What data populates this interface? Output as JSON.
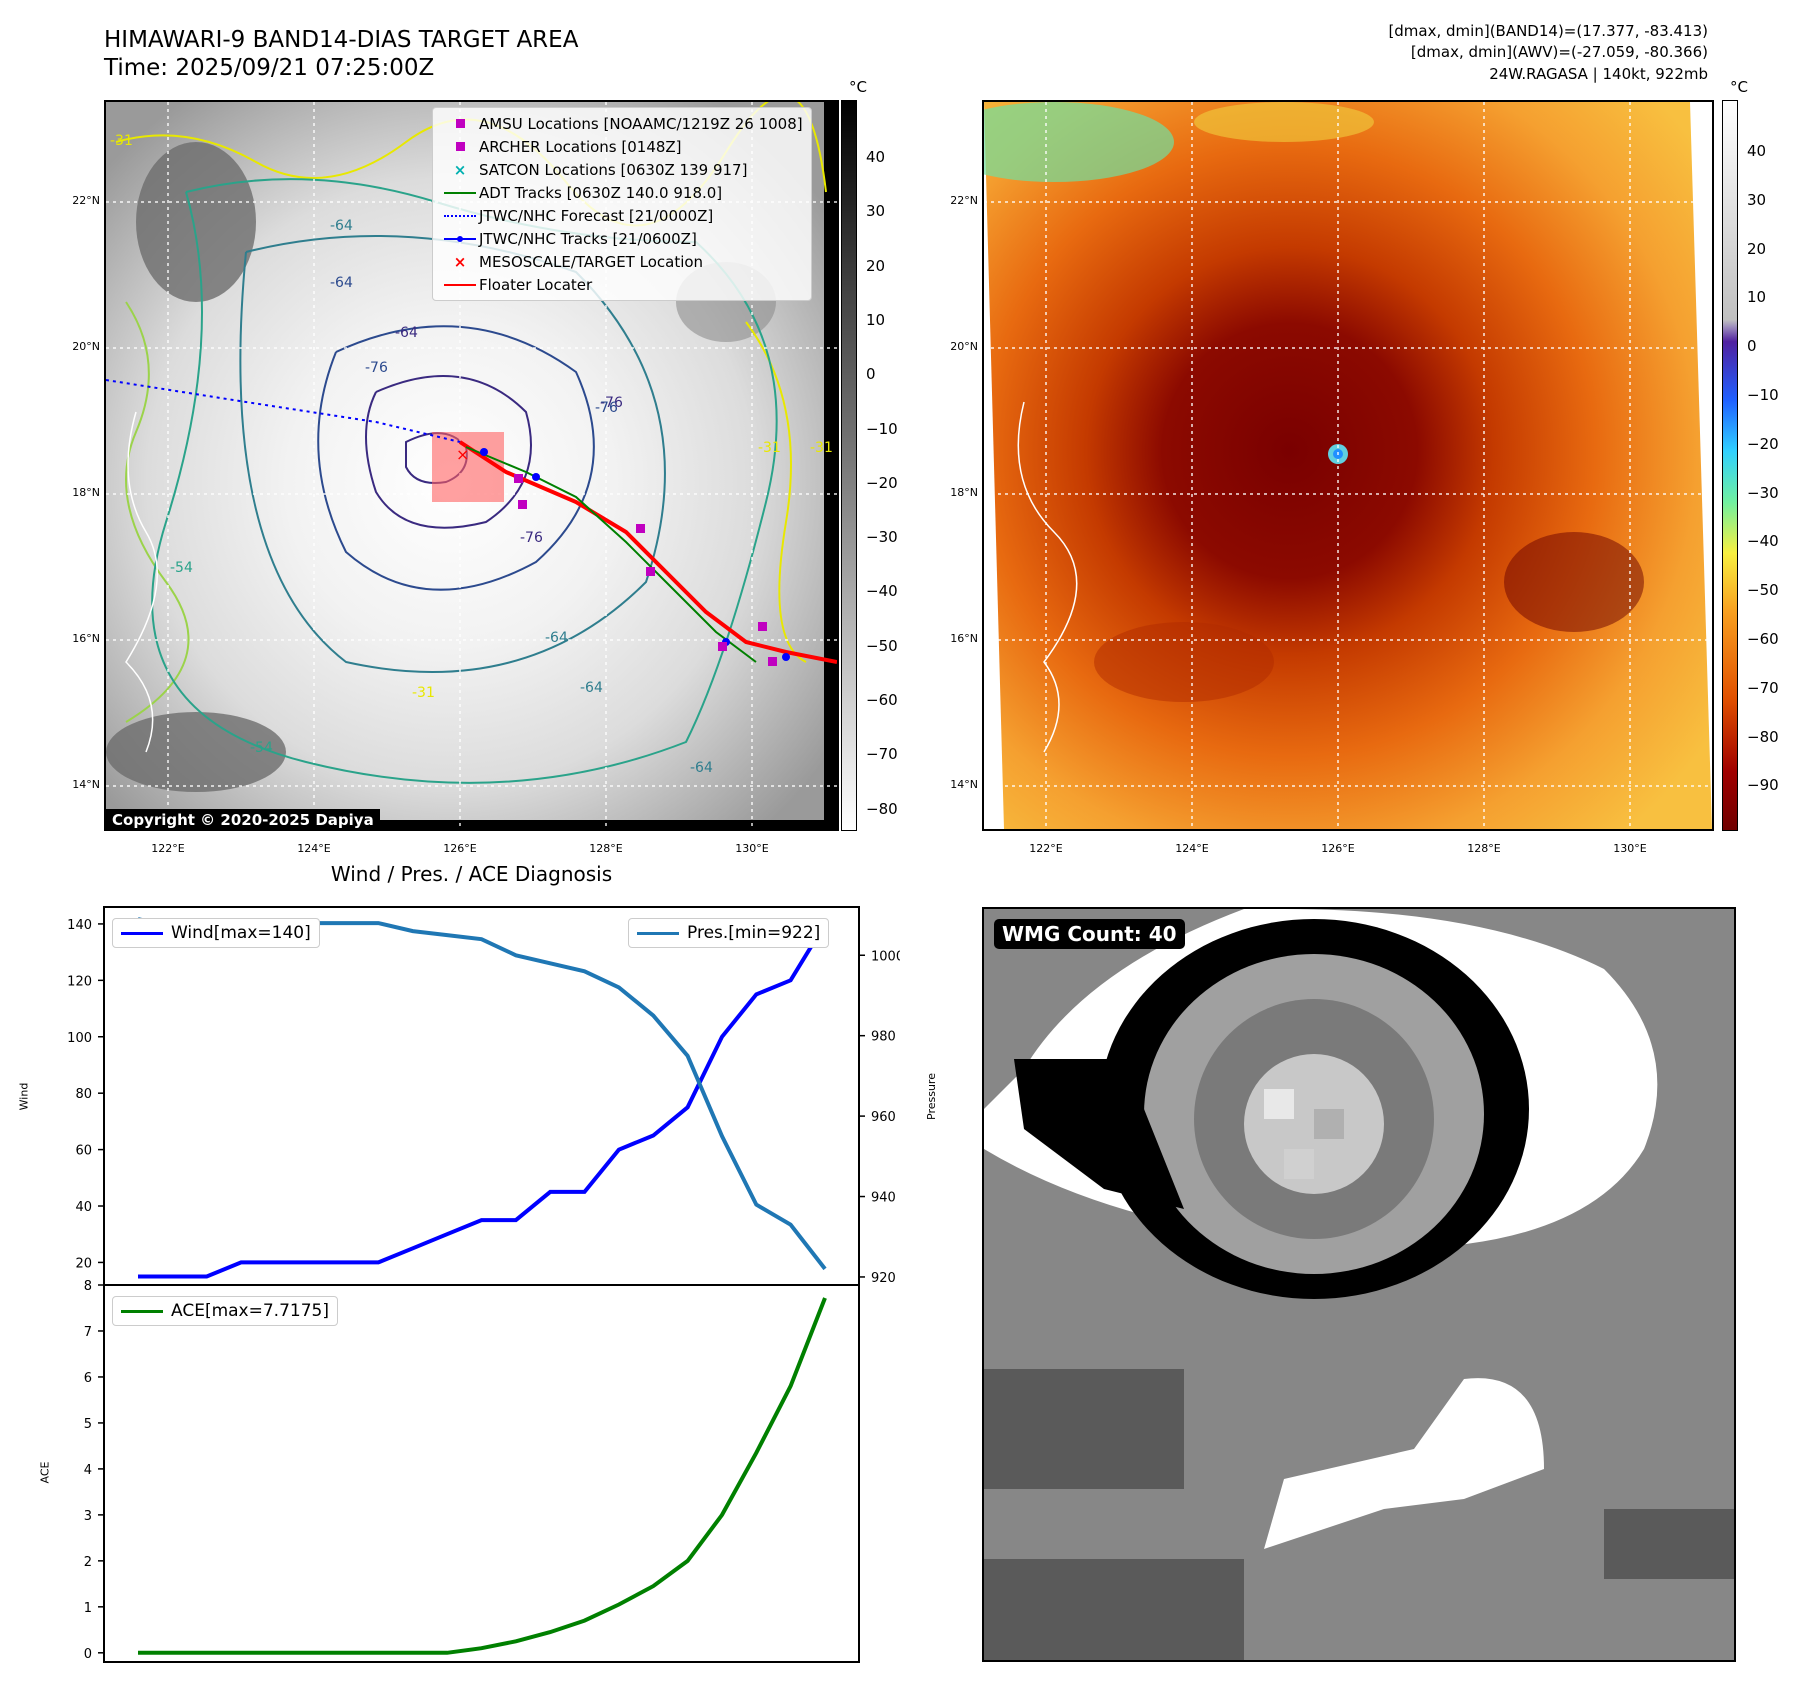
{
  "header": {
    "title_line1": "HIMAWARI-9 BAND14-DIAS TARGET AREA",
    "title_line2": "Time: 2025/09/21 07:25:00Z",
    "info_line1": "[dmax, dmin](BAND14)=(17.377, -83.413)",
    "info_line2": "[dmax, dmin](AWV)=(-27.059, -80.366)",
    "info_line3": "24W.RAGASA | 140kt, 922mb"
  },
  "map_common": {
    "lat_labels": [
      "22°N",
      "20°N",
      "18°N",
      "16°N",
      "14°N"
    ],
    "lon_labels": [
      "122°E",
      "124°E",
      "126°E",
      "128°E",
      "130°E"
    ]
  },
  "left_map": {
    "colorbar_unit": "°C",
    "colorbar_ticks": [
      "40",
      "30",
      "20",
      "10",
      "0",
      "−10",
      "−20",
      "−30",
      "−40",
      "−50",
      "−60",
      "−70",
      "−80"
    ],
    "contour_labels": [
      "-31",
      "-64",
      "-64",
      "-64",
      "-76",
      "-76",
      "-76",
      "-76",
      "-64",
      "-31",
      "-31",
      "-54",
      "-54",
      "-31",
      "-64",
      "-64"
    ],
    "legend": [
      "AMSU Locations [NOAAMC/1219Z 26 1008]",
      "ARCHER Locations [0148Z]",
      "SATCON Locations [0630Z 139 917]",
      "ADT Tracks [0630Z 140.0 918.0]",
      "JTWC/NHC Forecast [21/0000Z]",
      "JTWC/NHC Tracks [21/0600Z]",
      "MESOSCALE/TARGET Location",
      "Floater Locater"
    ],
    "copyright": "Copyright © 2020-2025 Dapiya",
    "colors": {
      "amsu": "#c000c0",
      "archer": "#c000c0",
      "satcon": "#00b0b0",
      "adt": "#008000",
      "jtwc_forecast": "#0000ff",
      "jtwc_tracks": "#0000ff",
      "target": "#ff0000",
      "floater": "#ff0000"
    }
  },
  "right_map": {
    "colorbar_unit": "°C",
    "colorbar_ticks": [
      "40",
      "30",
      "20",
      "10",
      "0",
      "−10",
      "−20",
      "−30",
      "−40",
      "−50",
      "−60",
      "−70",
      "−80",
      "−90"
    ]
  },
  "diagnosis": {
    "title": "Wind / Pres. / ACE Diagnosis",
    "wind_ylabel": "Wind",
    "pres_ylabel": "Pressure",
    "ace_ylabel": "ACE",
    "wind_ticks": [
      "140",
      "120",
      "100",
      "80",
      "60",
      "40",
      "20"
    ],
    "pres_ticks": [
      "1000",
      "980",
      "960",
      "940",
      "920"
    ],
    "ace_ticks": [
      "8",
      "7",
      "6",
      "5",
      "4",
      "3",
      "2",
      "1",
      "0"
    ],
    "wind_legend": "Wind[max=140]",
    "pres_legend": "Pres.[min=922]",
    "ace_legend": "ACE[max=7.7175]"
  },
  "wmg": {
    "label": "WMG Count: 40"
  },
  "chart_data": [
    {
      "type": "line",
      "title": "Wind / Pres. / ACE Diagnosis",
      "ylabel": "Wind",
      "ylim": [
        12,
        146
      ],
      "series": [
        {
          "name": "Wind[max=140]",
          "color": "#0000ff",
          "values": [
            15,
            15,
            15,
            20,
            20,
            20,
            20,
            20,
            25,
            30,
            35,
            35,
            45,
            45,
            60,
            65,
            75,
            100,
            115,
            120,
            140
          ]
        }
      ],
      "ylabel2": "Pressure",
      "ylim2": [
        918,
        1012
      ],
      "series2": [
        {
          "name": "Pres.[min=922]",
          "color": "#1f77b4",
          "values": [
            1009,
            1007,
            1007,
            1008,
            1008,
            1008,
            1008,
            1008,
            1006,
            1005,
            1004,
            1000,
            998,
            996,
            992,
            985,
            975,
            955,
            938,
            933,
            922
          ]
        }
      ]
    },
    {
      "type": "line",
      "ylabel": "ACE",
      "ylim": [
        -0.2,
        8
      ],
      "series": [
        {
          "name": "ACE[max=7.7175]",
          "color": "#008000",
          "values": [
            0,
            0,
            0,
            0,
            0,
            0,
            0,
            0,
            0,
            0,
            0.1,
            0.25,
            0.45,
            0.7,
            1.05,
            1.45,
            2.0,
            3.0,
            4.35,
            5.8,
            7.7175
          ]
        }
      ]
    }
  ]
}
